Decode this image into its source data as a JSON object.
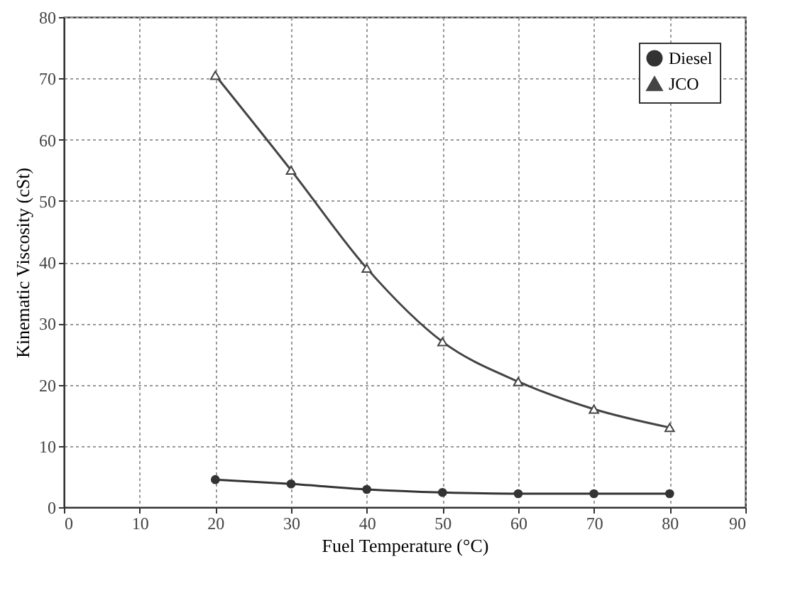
{
  "chart_data": {
    "type": "line",
    "xlabel": "Fuel Temperature (°C)",
    "ylabel": "Kinematic Viscosity (cSt)",
    "x": [
      20,
      30,
      40,
      50,
      60,
      70,
      80
    ],
    "series": [
      {
        "name": "Diesel",
        "color": "#333333",
        "marker": "circle",
        "values": [
          4.5,
          3.8,
          2.9,
          2.4,
          2.2,
          2.2,
          2.2
        ]
      },
      {
        "name": "JCO",
        "color": "#444444",
        "marker": "triangle",
        "values": [
          70.5,
          55,
          39,
          27,
          20.5,
          16,
          13
        ]
      }
    ],
    "xlim": [
      0,
      90
    ],
    "xticks": [
      0,
      10,
      20,
      30,
      40,
      50,
      60,
      70,
      80,
      90
    ],
    "ylim": [
      0,
      80
    ],
    "yticks": [
      0,
      10,
      20,
      30,
      40,
      50,
      60,
      70,
      80
    ],
    "grid": true,
    "legend": "top right",
    "line_style": "solid"
  }
}
